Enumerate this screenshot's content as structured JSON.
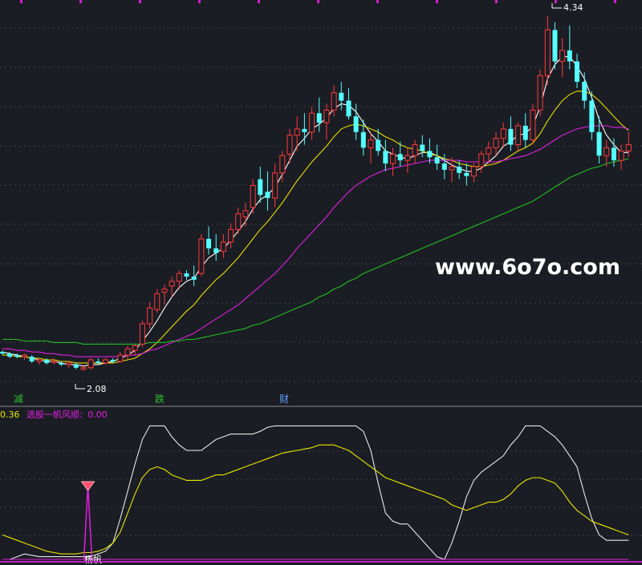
{
  "chart_data": [
    {
      "type": "candlestick",
      "title": "",
      "annotations": {
        "high_label": "4.34",
        "low_label": "2.08",
        "markers": [
          "减",
          "跌",
          "财"
        ]
      },
      "watermark": "www.6o7o.com",
      "ylim": [
        1.9,
        4.4
      ],
      "candles_ohlc": [
        [
          2.2,
          2.21,
          2.18,
          2.19
        ],
        [
          2.19,
          2.2,
          2.16,
          2.17
        ],
        [
          2.18,
          2.19,
          2.16,
          2.17
        ],
        [
          2.17,
          2.19,
          2.15,
          2.18
        ],
        [
          2.17,
          2.18,
          2.13,
          2.14
        ],
        [
          2.14,
          2.16,
          2.12,
          2.15
        ],
        [
          2.15,
          2.16,
          2.12,
          2.13
        ],
        [
          2.14,
          2.16,
          2.12,
          2.14
        ],
        [
          2.13,
          2.14,
          2.11,
          2.12
        ],
        [
          2.12,
          2.14,
          2.1,
          2.13
        ],
        [
          2.12,
          2.13,
          2.09,
          2.1
        ],
        [
          2.09,
          2.11,
          2.08,
          2.1
        ],
        [
          2.1,
          2.16,
          2.09,
          2.15
        ],
        [
          2.14,
          2.16,
          2.12,
          2.13
        ],
        [
          2.13,
          2.16,
          2.12,
          2.15
        ],
        [
          2.15,
          2.16,
          2.13,
          2.14
        ],
        [
          2.14,
          2.2,
          2.13,
          2.18
        ],
        [
          2.18,
          2.24,
          2.15,
          2.22
        ],
        [
          2.21,
          2.25,
          2.18,
          2.24
        ],
        [
          2.25,
          2.4,
          2.23,
          2.38
        ],
        [
          2.38,
          2.52,
          2.35,
          2.48
        ],
        [
          2.47,
          2.6,
          2.45,
          2.57
        ],
        [
          2.58,
          2.63,
          2.5,
          2.6
        ],
        [
          2.62,
          2.68,
          2.55,
          2.65
        ],
        [
          2.65,
          2.72,
          2.6,
          2.7
        ],
        [
          2.7,
          2.72,
          2.66,
          2.68
        ],
        [
          2.68,
          2.75,
          2.62,
          2.66
        ],
        [
          2.7,
          2.95,
          2.68,
          2.92
        ],
        [
          2.92,
          3.0,
          2.82,
          2.86
        ],
        [
          2.86,
          2.95,
          2.78,
          2.83
        ],
        [
          2.84,
          2.95,
          2.8,
          2.9
        ],
        [
          2.9,
          3.02,
          2.86,
          2.98
        ],
        [
          2.98,
          3.12,
          2.95,
          3.08
        ],
        [
          3.06,
          3.15,
          3.0,
          3.1
        ],
        [
          3.12,
          3.3,
          3.08,
          3.26
        ],
        [
          3.3,
          3.38,
          3.15,
          3.2
        ],
        [
          3.22,
          3.35,
          3.1,
          3.18
        ],
        [
          3.18,
          3.4,
          3.12,
          3.34
        ],
        [
          3.34,
          3.48,
          3.28,
          3.45
        ],
        [
          3.46,
          3.62,
          3.4,
          3.58
        ],
        [
          3.58,
          3.7,
          3.48,
          3.62
        ],
        [
          3.62,
          3.72,
          3.52,
          3.6
        ],
        [
          3.6,
          3.76,
          3.55,
          3.72
        ],
        [
          3.72,
          3.82,
          3.6,
          3.66
        ],
        [
          3.66,
          3.78,
          3.55,
          3.74
        ],
        [
          3.74,
          3.9,
          3.7,
          3.85
        ],
        [
          3.85,
          3.92,
          3.74,
          3.8
        ],
        [
          3.8,
          3.88,
          3.68,
          3.7
        ],
        [
          3.7,
          3.78,
          3.55,
          3.6
        ],
        [
          3.6,
          3.68,
          3.45,
          3.5
        ],
        [
          3.5,
          3.6,
          3.4,
          3.55
        ],
        [
          3.55,
          3.62,
          3.45,
          3.48
        ],
        [
          3.48,
          3.55,
          3.35,
          3.4
        ],
        [
          3.4,
          3.5,
          3.32,
          3.46
        ],
        [
          3.46,
          3.54,
          3.38,
          3.42
        ],
        [
          3.42,
          3.5,
          3.34,
          3.45
        ],
        [
          3.45,
          3.55,
          3.4,
          3.52
        ],
        [
          3.52,
          3.58,
          3.44,
          3.48
        ],
        [
          3.48,
          3.56,
          3.4,
          3.44
        ],
        [
          3.44,
          3.52,
          3.36,
          3.4
        ],
        [
          3.4,
          3.46,
          3.3,
          3.36
        ],
        [
          3.36,
          3.44,
          3.28,
          3.38
        ],
        [
          3.38,
          3.42,
          3.3,
          3.34
        ],
        [
          3.34,
          3.4,
          3.26,
          3.32
        ],
        [
          3.32,
          3.4,
          3.28,
          3.38
        ],
        [
          3.38,
          3.48,
          3.34,
          3.46
        ],
        [
          3.46,
          3.54,
          3.4,
          3.5
        ],
        [
          3.5,
          3.6,
          3.45,
          3.56
        ],
        [
          3.56,
          3.66,
          3.5,
          3.62
        ],
        [
          3.62,
          3.7,
          3.48,
          3.52
        ],
        [
          3.52,
          3.66,
          3.48,
          3.64
        ],
        [
          3.64,
          3.72,
          3.5,
          3.55
        ],
        [
          3.55,
          3.78,
          3.52,
          3.74
        ],
        [
          3.74,
          4.0,
          3.7,
          3.96
        ],
        [
          3.96,
          4.34,
          3.9,
          4.25
        ],
        [
          4.25,
          4.3,
          4.0,
          4.05
        ],
        [
          4.05,
          4.2,
          3.95,
          4.12
        ],
        [
          4.12,
          4.28,
          4.0,
          4.05
        ],
        [
          4.05,
          4.1,
          3.88,
          3.92
        ],
        [
          3.92,
          3.98,
          3.75,
          3.8
        ],
        [
          3.8,
          3.86,
          3.55,
          3.6
        ],
        [
          3.6,
          3.7,
          3.4,
          3.45
        ],
        [
          3.45,
          3.55,
          3.38,
          3.5
        ],
        [
          3.5,
          3.56,
          3.38,
          3.42
        ],
        [
          3.42,
          3.52,
          3.36,
          3.48
        ],
        [
          3.48,
          3.6,
          3.44,
          3.52
        ]
      ],
      "series": [
        {
          "name": "",
          "color": "#ffffff",
          "values": [
            2.2,
            2.19,
            2.18,
            2.17,
            2.16,
            2.15,
            2.14,
            2.14,
            2.13,
            2.12,
            2.12,
            2.11,
            2.12,
            2.12,
            2.13,
            2.14,
            2.16,
            2.18,
            2.21,
            2.27,
            2.33,
            2.4,
            2.48,
            2.55,
            2.61,
            2.65,
            2.67,
            2.74,
            2.8,
            2.83,
            2.86,
            2.91,
            2.97,
            3.03,
            3.11,
            3.17,
            3.2,
            3.25,
            3.33,
            3.42,
            3.51,
            3.56,
            3.62,
            3.65,
            3.69,
            3.75,
            3.78,
            3.77,
            3.73,
            3.66,
            3.59,
            3.54,
            3.48,
            3.46,
            3.44,
            3.43,
            3.45,
            3.47,
            3.47,
            3.45,
            3.42,
            3.39,
            3.37,
            3.35,
            3.35,
            3.37,
            3.41,
            3.45,
            3.51,
            3.54,
            3.58,
            3.59,
            3.64,
            3.76,
            3.94,
            4.03,
            4.08,
            4.08,
            4.02,
            3.94,
            3.82,
            3.68,
            3.58,
            3.52,
            3.47,
            3.47
          ]
        },
        {
          "name": "",
          "color": "#e8e000",
          "values": [
            2.18,
            2.18,
            2.17,
            2.17,
            2.16,
            2.16,
            2.15,
            2.15,
            2.14,
            2.14,
            2.13,
            2.13,
            2.13,
            2.13,
            2.13,
            2.13,
            2.14,
            2.15,
            2.16,
            2.19,
            2.22,
            2.26,
            2.31,
            2.36,
            2.41,
            2.46,
            2.5,
            2.56,
            2.61,
            2.66,
            2.7,
            2.75,
            2.8,
            2.86,
            2.92,
            2.98,
            3.03,
            3.09,
            3.15,
            3.22,
            3.29,
            3.35,
            3.41,
            3.46,
            3.51,
            3.57,
            3.62,
            3.64,
            3.65,
            3.64,
            3.62,
            3.6,
            3.57,
            3.55,
            3.52,
            3.5,
            3.49,
            3.48,
            3.46,
            3.45,
            3.43,
            3.42,
            3.4,
            3.39,
            3.38,
            3.38,
            3.39,
            3.4,
            3.42,
            3.45,
            3.48,
            3.5,
            3.53,
            3.59,
            3.67,
            3.74,
            3.8,
            3.84,
            3.86,
            3.86,
            3.84,
            3.8,
            3.75,
            3.7,
            3.65,
            3.61
          ]
        },
        {
          "name": "",
          "color": "#e020e0",
          "values": [
            2.22,
            2.22,
            2.21,
            2.21,
            2.2,
            2.2,
            2.19,
            2.19,
            2.18,
            2.18,
            2.17,
            2.17,
            2.17,
            2.17,
            2.17,
            2.17,
            2.17,
            2.18,
            2.18,
            2.19,
            2.21,
            2.22,
            2.24,
            2.26,
            2.28,
            2.3,
            2.32,
            2.35,
            2.38,
            2.41,
            2.44,
            2.47,
            2.5,
            2.54,
            2.58,
            2.62,
            2.66,
            2.7,
            2.75,
            2.8,
            2.86,
            2.91,
            2.96,
            3.01,
            3.06,
            3.12,
            3.17,
            3.22,
            3.26,
            3.29,
            3.32,
            3.34,
            3.36,
            3.37,
            3.38,
            3.39,
            3.4,
            3.41,
            3.42,
            3.42,
            3.42,
            3.42,
            3.42,
            3.41,
            3.41,
            3.41,
            3.41,
            3.41,
            3.42,
            3.43,
            3.44,
            3.45,
            3.47,
            3.49,
            3.52,
            3.55,
            3.58,
            3.6,
            3.62,
            3.63,
            3.64,
            3.64,
            3.64,
            3.63,
            3.63,
            3.62
          ]
        },
        {
          "name": "",
          "color": "#20c020",
          "values": [
            2.28,
            2.28,
            2.28,
            2.27,
            2.27,
            2.27,
            2.27,
            2.26,
            2.26,
            2.26,
            2.26,
            2.25,
            2.25,
            2.25,
            2.25,
            2.25,
            2.25,
            2.25,
            2.25,
            2.25,
            2.26,
            2.26,
            2.26,
            2.27,
            2.27,
            2.28,
            2.28,
            2.29,
            2.3,
            2.31,
            2.32,
            2.33,
            2.34,
            2.35,
            2.37,
            2.38,
            2.4,
            2.42,
            2.44,
            2.46,
            2.48,
            2.5,
            2.52,
            2.55,
            2.57,
            2.6,
            2.62,
            2.65,
            2.67,
            2.7,
            2.72,
            2.74,
            2.76,
            2.78,
            2.8,
            2.82,
            2.84,
            2.86,
            2.88,
            2.9,
            2.92,
            2.94,
            2.96,
            2.98,
            3.0,
            3.02,
            3.04,
            3.06,
            3.08,
            3.1,
            3.12,
            3.14,
            3.16,
            3.19,
            3.22,
            3.25,
            3.28,
            3.31,
            3.33,
            3.35,
            3.37,
            3.38,
            3.4,
            3.41,
            3.42,
            3.43
          ]
        }
      ]
    },
    {
      "type": "line",
      "legend": {
        "value1": "0.36",
        "name2": "选股一帆风顺:",
        "value2": "0.00"
      },
      "signal_label": "杨帆",
      "ylim": [
        0,
        100
      ],
      "signal_index": 14,
      "series": [
        {
          "name": "",
          "color": "#e8e8e8",
          "values": [
            0,
            0,
            2,
            4,
            3,
            2,
            2,
            2,
            2,
            2,
            2,
            2,
            2,
            4,
            6,
            12,
            30,
            50,
            70,
            88,
            98,
            98,
            98,
            90,
            84,
            80,
            80,
            80,
            84,
            88,
            90,
            92,
            92,
            92,
            92,
            94,
            97,
            98,
            98,
            98,
            98,
            98,
            98,
            98,
            98,
            98,
            98,
            98,
            98,
            94,
            80,
            56,
            34,
            28,
            26,
            26,
            20,
            14,
            8,
            2,
            0,
            12,
            28,
            46,
            58,
            64,
            68,
            72,
            76,
            84,
            90,
            98,
            98,
            98,
            94,
            90,
            84,
            76,
            68,
            48,
            30,
            18,
            14,
            14,
            14,
            14
          ]
        },
        {
          "name": "",
          "color": "#e8e800",
          "values": [
            18,
            16,
            14,
            12,
            10,
            8,
            6,
            5,
            4,
            4,
            4,
            5,
            5,
            6,
            8,
            12,
            20,
            34,
            48,
            60,
            66,
            68,
            66,
            62,
            60,
            58,
            58,
            58,
            60,
            62,
            62,
            64,
            66,
            68,
            70,
            72,
            74,
            76,
            78,
            79,
            80,
            81,
            82,
            84,
            84,
            84,
            82,
            80,
            76,
            72,
            68,
            64,
            60,
            58,
            56,
            54,
            52,
            50,
            48,
            46,
            44,
            40,
            38,
            36,
            38,
            40,
            42,
            42,
            44,
            48,
            54,
            58,
            60,
            60,
            58,
            56,
            50,
            42,
            36,
            32,
            28,
            26,
            24,
            22,
            20,
            18
          ]
        },
        {
          "name": "",
          "color": "#e020e0",
          "values": [
            0,
            0,
            0,
            0,
            0,
            0,
            0,
            0,
            0,
            0,
            0,
            0,
            0,
            0,
            0,
            0,
            0,
            0,
            0,
            0,
            0,
            0,
            0,
            0,
            0,
            0,
            0,
            0,
            0,
            0,
            0,
            0,
            0,
            0,
            0,
            0,
            0,
            0,
            0,
            0,
            0,
            0,
            0,
            0,
            0,
            0,
            0,
            0,
            0,
            0,
            0,
            0,
            0,
            0,
            0,
            0,
            0,
            0,
            0,
            0,
            0,
            0,
            0,
            0,
            0,
            0,
            0,
            0,
            0,
            0,
            0,
            0,
            0,
            0,
            0,
            0,
            0,
            0,
            0,
            0,
            0,
            0,
            0,
            0,
            0,
            0
          ]
        }
      ]
    }
  ]
}
